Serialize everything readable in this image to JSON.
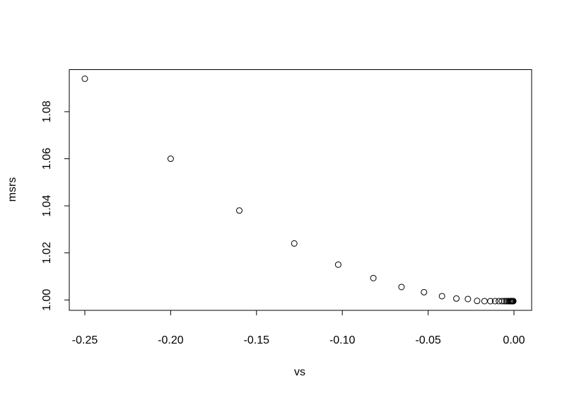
{
  "chart_data": {
    "type": "scatter",
    "title": "",
    "xlabel": "vs",
    "ylabel": "msrs",
    "xlim": [
      -0.26,
      0.01
    ],
    "ylim": [
      0.995,
      1.098
    ],
    "grid": false,
    "x_ticks": [
      "-0.25",
      "-0.20",
      "-0.15",
      "-0.10",
      "-0.05",
      "0.00"
    ],
    "x_tick_values": [
      -0.25,
      -0.2,
      -0.15,
      -0.1,
      -0.05,
      0.0
    ],
    "y_ticks": [
      "1.00",
      "1.02",
      "1.04",
      "1.06",
      "1.08"
    ],
    "y_tick_values": [
      1.0,
      1.02,
      1.04,
      1.06,
      1.08
    ],
    "marker": "open-circle",
    "x": [
      -0.25,
      -0.2,
      -0.16,
      -0.128,
      -0.1024,
      -0.08192,
      -0.065536,
      -0.052429,
      -0.041943,
      -0.033554,
      -0.026844,
      -0.021475,
      -0.01718,
      -0.013744,
      -0.010995,
      -0.008796,
      -0.007037,
      -0.005629,
      -0.004504,
      -0.003603,
      -0.002882,
      -0.002306,
      -0.001845,
      -0.001476,
      -0.001181,
      -0.000944,
      -0.000756,
      -0.000604,
      -0.000484,
      -0.000387
    ],
    "y": [
      1.094,
      1.06,
      1.038,
      1.024,
      1.015,
      1.0093,
      1.0055,
      1.0033,
      1.0016,
      1.0006,
      1.0004,
      0.9996,
      0.9995,
      0.9995,
      0.9995,
      0.9995,
      0.9995,
      0.9995,
      0.9995,
      0.9995,
      0.9995,
      0.9995,
      0.9995,
      0.9995,
      0.9995,
      0.9995,
      0.9995,
      0.9995,
      0.9995,
      0.9995
    ]
  }
}
